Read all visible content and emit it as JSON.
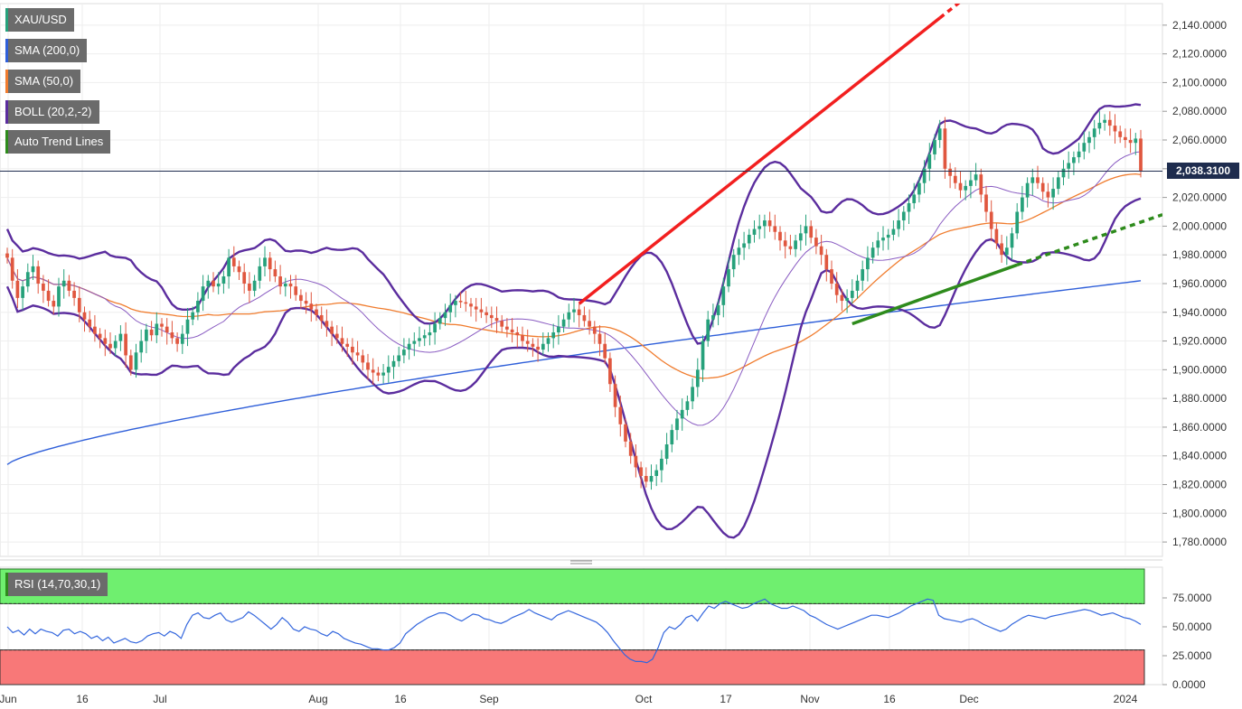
{
  "symbol": "XAU/USD",
  "legends": {
    "sma200": "SMA (200,0)",
    "sma50": "SMA (50,0)",
    "boll": "BOLL (20,2,-2)",
    "trend": "Auto Trend Lines",
    "rsi": "RSI (14,70,30,1)"
  },
  "last_price_label": "2,038.3100",
  "colors": {
    "sma200": "#2f5fd9",
    "sma50": "#f07c2e",
    "boll_band": "#5b2d9e",
    "boll_mid": "#8a5cc2",
    "up_candle": "#26a17b",
    "down_candle": "#e0573f",
    "trend_red": "#f21f1f",
    "trend_green": "#2e8b1c",
    "rsi_line": "#3366dd",
    "rsi_overbought": "#6fef6f",
    "rsi_oversold": "#f87878",
    "last_price_line": "#1e2c4e"
  },
  "chart_data": [
    {
      "type": "candlestick",
      "title": "XAU/USD",
      "x_labels": [
        "Jun",
        "16",
        "Jul",
        "Aug",
        "16",
        "Sep",
        "Oct",
        "17",
        "Nov",
        "16",
        "Dec",
        "2024"
      ],
      "y_ticks": [
        "1,780.0000",
        "1,800.0000",
        "1,820.0000",
        "1,840.0000",
        "1,860.0000",
        "1,880.0000",
        "1,900.0000",
        "1,920.0000",
        "1,940.0000",
        "1,960.0000",
        "1,980.0000",
        "2,000.0000",
        "2,020.0000",
        "2,040.0000",
        "2,060.0000",
        "2,080.0000",
        "2,100.0000",
        "2,120.0000",
        "2,140.0000"
      ],
      "ylim": [
        1770,
        2155
      ],
      "last_price": 2038.31,
      "closes": [
        1978,
        1962,
        1950,
        1958,
        1968,
        1972,
        1960,
        1955,
        1948,
        1944,
        1958,
        1962,
        1955,
        1950,
        1940,
        1935,
        1930,
        1925,
        1922,
        1918,
        1915,
        1920,
        1925,
        1910,
        1900,
        1912,
        1920,
        1928,
        1924,
        1932,
        1930,
        1926,
        1922,
        1918,
        1925,
        1935,
        1940,
        1948,
        1958,
        1962,
        1958,
        1960,
        1965,
        1978,
        1972,
        1968,
        1960,
        1955,
        1962,
        1972,
        1978,
        1970,
        1965,
        1958,
        1960,
        1958,
        1952,
        1948,
        1946,
        1942,
        1938,
        1934,
        1930,
        1925,
        1922,
        1918,
        1916,
        1912,
        1910,
        1905,
        1900,
        1898,
        1896,
        1898,
        1902,
        1906,
        1910,
        1914,
        1918,
        1920,
        1922,
        1924,
        1926,
        1932,
        1936,
        1940,
        1945,
        1948,
        1947,
        1946,
        1944,
        1942,
        1940,
        1938,
        1936,
        1934,
        1930,
        1928,
        1926,
        1924,
        1920,
        1918,
        1916,
        1914,
        1918,
        1922,
        1926,
        1930,
        1935,
        1940,
        1942,
        1938,
        1934,
        1930,
        1925,
        1918,
        1908,
        1890,
        1874,
        1862,
        1850,
        1840,
        1832,
        1826,
        1822,
        1826,
        1830,
        1838,
        1848,
        1858,
        1866,
        1872,
        1878,
        1888,
        1900,
        1920,
        1935,
        1938,
        1945,
        1958,
        1970,
        1980,
        1985,
        1988,
        1994,
        1998,
        2000,
        2004,
        2000,
        1996,
        1990,
        1986,
        1984,
        1990,
        1995,
        2000,
        1992,
        1986,
        1980,
        1970,
        1960,
        1952,
        1948,
        1950,
        1955,
        1962,
        1970,
        1978,
        1985,
        1990,
        1992,
        1994,
        1998,
        2004,
        2010,
        2016,
        2022,
        2030,
        2040,
        2050,
        2060,
        2068,
        2040,
        2035,
        2030,
        2025,
        2028,
        2032,
        2036,
        2022,
        2010,
        1998,
        1988,
        1980,
        1985,
        1995,
        2010,
        2020,
        2030,
        2034,
        2030,
        2024,
        2020,
        2026,
        2034,
        2040,
        2044,
        2048,
        2052,
        2058,
        2062,
        2068,
        2072,
        2074,
        2070,
        2066,
        2062,
        2060,
        2058,
        2061,
        2038
      ]
    },
    {
      "type": "line",
      "title": "RSI (14,70,30,1)",
      "y_ticks": [
        "0.0000",
        "25.0000",
        "50.0000",
        "75.0000"
      ],
      "ylim": [
        0,
        100
      ],
      "overbought": 70,
      "oversold": 30,
      "values": [
        50,
        45,
        47,
        43,
        48,
        44,
        48,
        46,
        45,
        42,
        47,
        48,
        44,
        46,
        44,
        40,
        42,
        38,
        41,
        36,
        38,
        40,
        37,
        36,
        38,
        42,
        44,
        45,
        42,
        46,
        44,
        40,
        52,
        60,
        62,
        58,
        57,
        60,
        62,
        56,
        54,
        56,
        58,
        63,
        60,
        56,
        52,
        48,
        52,
        58,
        54,
        48,
        46,
        50,
        48,
        47,
        44,
        42,
        46,
        44,
        40,
        38,
        36,
        35,
        33,
        31,
        31,
        30,
        30,
        32,
        36,
        44,
        48,
        52,
        55,
        58,
        60,
        62,
        62,
        60,
        57,
        55,
        58,
        61,
        60,
        57,
        56,
        54,
        53,
        55,
        58,
        60,
        62,
        65,
        62,
        60,
        58,
        56,
        60,
        62,
        64,
        62,
        60,
        58,
        56,
        54,
        50,
        45,
        38,
        32,
        26,
        22,
        20,
        20,
        19,
        22,
        32,
        45,
        50,
        48,
        52,
        58,
        60,
        55,
        62,
        68,
        66,
        70,
        72,
        70,
        68,
        66,
        67,
        70,
        72,
        74,
        70,
        68,
        66,
        66,
        68,
        66,
        64,
        60,
        58,
        55,
        52,
        50,
        48,
        50,
        52,
        54,
        56,
        58,
        60,
        60,
        59,
        58,
        60,
        62,
        65,
        68,
        70,
        72,
        74,
        73,
        60,
        57,
        56,
        55,
        54,
        56,
        57,
        55,
        52,
        50,
        48,
        46,
        48,
        52,
        55,
        58,
        60,
        59,
        58,
        57,
        59,
        60,
        61,
        62,
        63,
        64,
        65,
        64,
        62,
        60,
        61,
        62,
        60,
        58,
        57,
        55,
        52
      ]
    }
  ]
}
